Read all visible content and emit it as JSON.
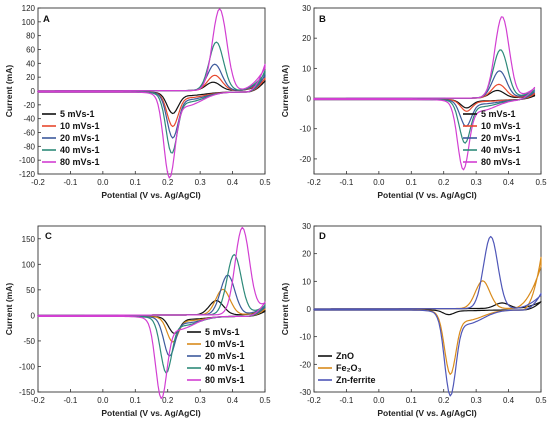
{
  "chart_data": [
    {
      "panel": "A",
      "type": "line",
      "xlabel": "Potential (V vs. Ag/AgCl)",
      "ylabel": "Current (mA)",
      "xlim": [
        -0.2,
        0.5
      ],
      "ylim": [
        -120,
        120
      ],
      "xticks": [
        "-0.2",
        "-0.1",
        "0.0",
        "0.1",
        "0.2",
        "0.3",
        "0.4",
        "0.5"
      ],
      "yticks": [
        "-120",
        "-100",
        "-80",
        "-60",
        "-40",
        "-20",
        "0",
        "20",
        "40",
        "60",
        "80",
        "100",
        "120"
      ],
      "legend_position": "lower-left",
      "series": [
        {
          "name": "5 mVs-1",
          "color": "#111111",
          "cathodic_peak": [
            0.215,
            -28
          ],
          "anodic_peak": [
            0.34,
            12
          ],
          "end_current": [
            0.5,
            16
          ]
        },
        {
          "name": "10 mVs-1",
          "color": "#e8492f",
          "cathodic_peak": [
            0.215,
            -45
          ],
          "anodic_peak": [
            0.345,
            22
          ],
          "end_current": [
            0.5,
            20
          ]
        },
        {
          "name": "20 mVs-1",
          "color": "#3d5a9c",
          "cathodic_peak": [
            0.215,
            -60
          ],
          "anodic_peak": [
            0.345,
            38
          ],
          "end_current": [
            0.5,
            25
          ]
        },
        {
          "name": "40 mVs-1",
          "color": "#2e8a7a",
          "cathodic_peak": [
            0.212,
            -80
          ],
          "anodic_peak": [
            0.35,
            70
          ],
          "end_current": [
            0.5,
            31
          ]
        },
        {
          "name": "80 mVs-1",
          "color": "#d23fd2",
          "cathodic_peak": [
            0.205,
            -112
          ],
          "anodic_peak": [
            0.36,
            118
          ],
          "end_current": [
            0.5,
            40
          ]
        }
      ]
    },
    {
      "panel": "B",
      "type": "line",
      "xlabel": "Potential (V vs. Ag/AgCl)",
      "ylabel": "Current (mA)",
      "xlim": [
        -0.2,
        0.5
      ],
      "ylim": [
        -25,
        30
      ],
      "xticks": [
        "-0.2",
        "-0.1",
        "0.0",
        "0.1",
        "0.2",
        "0.3",
        "0.4",
        "0.5"
      ],
      "yticks": [
        "-20",
        "-10",
        "0",
        "10",
        "20",
        "30"
      ],
      "legend_position": "lower-right",
      "series": [
        {
          "name": "5 mVs-1",
          "color": "#111111",
          "cathodic_peak": [
            0.27,
            -2.5
          ],
          "anodic_peak": [
            0.365,
            2.5
          ],
          "end_current": [
            0.48,
            1.2
          ]
        },
        {
          "name": "10 mVs-1",
          "color": "#e8492f",
          "cathodic_peak": [
            0.27,
            -3.5
          ],
          "anodic_peak": [
            0.37,
            4.5
          ],
          "end_current": [
            0.48,
            1.8
          ]
        },
        {
          "name": "20 mVs-1",
          "color": "#3d5a9c",
          "cathodic_peak": [
            0.268,
            -8
          ],
          "anodic_peak": [
            0.372,
            9
          ],
          "end_current": [
            0.48,
            2.5
          ]
        },
        {
          "name": "40 mVs-1",
          "color": "#2e8a7a",
          "cathodic_peak": [
            0.265,
            -13
          ],
          "anodic_peak": [
            0.375,
            16
          ],
          "end_current": [
            0.48,
            3.2
          ]
        },
        {
          "name": "80 mVs-1",
          "color": "#d23fd2",
          "cathodic_peak": [
            0.26,
            -21
          ],
          "anodic_peak": [
            0.38,
            27
          ],
          "end_current": [
            0.48,
            4
          ]
        }
      ]
    },
    {
      "panel": "C",
      "type": "line",
      "xlabel": "Potential (V vs. Ag/AgCl)",
      "ylabel": "Current (mA)",
      "xlim": [
        -0.2,
        0.5
      ],
      "ylim": [
        -150,
        175
      ],
      "xticks": [
        "-0.2",
        "-0.1",
        "0.0",
        "0.1",
        "0.2",
        "0.3",
        "0.4",
        "0.5"
      ],
      "yticks": [
        "-150",
        "-100",
        "-50",
        "0",
        "50",
        "100",
        "150"
      ],
      "legend_position": "lower-right",
      "series": [
        {
          "name": "5 mVs-1",
          "color": "#111111",
          "cathodic_peak": [
            0.22,
            -30
          ],
          "anodic_peak": [
            0.35,
            28
          ],
          "end_current": [
            0.5,
            10
          ]
        },
        {
          "name": "10 mVs-1",
          "color": "#d98b1c",
          "cathodic_peak": [
            0.215,
            -45
          ],
          "anodic_peak": [
            0.37,
            50
          ],
          "end_current": [
            0.5,
            14
          ]
        },
        {
          "name": "20 mVs-1",
          "color": "#3d5a9c",
          "cathodic_peak": [
            0.205,
            -70
          ],
          "anodic_peak": [
            0.385,
            78
          ],
          "end_current": [
            0.5,
            18
          ]
        },
        {
          "name": "40 mVs-1",
          "color": "#2e8a7a",
          "cathodic_peak": [
            0.195,
            -100
          ],
          "anodic_peak": [
            0.405,
            118
          ],
          "end_current": [
            0.5,
            22
          ]
        },
        {
          "name": "80 mVs-1",
          "color": "#d23fd2",
          "cathodic_peak": [
            0.18,
            -145
          ],
          "anodic_peak": [
            0.43,
            170
          ],
          "end_current": [
            0.5,
            28
          ]
        }
      ]
    },
    {
      "panel": "D",
      "type": "line",
      "xlabel": "Potential (V vs. Ag/AgCl)",
      "ylabel": "Current (mA)",
      "xlim": [
        -0.2,
        0.5
      ],
      "ylim": [
        -30,
        30
      ],
      "xticks": [
        "-0.2",
        "-0.1",
        "0.0",
        "0.1",
        "0.2",
        "0.3",
        "0.4",
        "0.5"
      ],
      "yticks": [
        "-30",
        "-20",
        "-10",
        "0",
        "10",
        "20",
        "30"
      ],
      "legend_position": "lower-left",
      "series": [
        {
          "name": "ZnO",
          "color": "#111111",
          "cathodic_peak": [
            0.215,
            -1.5
          ],
          "anodic_peak": [
            0.38,
            2
          ],
          "end_current": [
            0.5,
            3
          ]
        },
        {
          "name": "Fe₂O₃",
          "color": "#d98b1c",
          "cathodic_peak": [
            0.22,
            -21
          ],
          "anodic_peak": [
            0.32,
            10
          ],
          "end_current": [
            0.5,
            19
          ]
        },
        {
          "name": "Zn-ferrite",
          "color": "#4f57b8",
          "cathodic_peak": [
            0.22,
            -28
          ],
          "anodic_peak": [
            0.345,
            26
          ],
          "end_current": [
            0.5,
            6
          ]
        }
      ]
    }
  ]
}
